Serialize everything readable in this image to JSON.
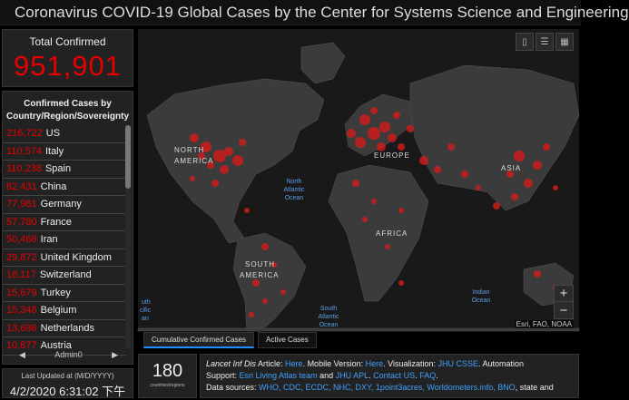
{
  "header": {
    "title": "Coronavirus COVID-19 Global Cases by the Center for Systems Science and Engineering"
  },
  "total": {
    "label": "Total Confirmed",
    "value": "951,901"
  },
  "list": {
    "heading_line1": "Confirmed Cases by",
    "heading_line2": "Country/Region/Sovereignty",
    "rows": [
      {
        "value": "216,722",
        "name": "US"
      },
      {
        "value": "110,574",
        "name": "Italy"
      },
      {
        "value": "110,238",
        "name": "Spain"
      },
      {
        "value": "82,431",
        "name": "China"
      },
      {
        "value": "77,981",
        "name": "Germany"
      },
      {
        "value": "57,780",
        "name": "France"
      },
      {
        "value": "50,468",
        "name": "Iran"
      },
      {
        "value": "29,872",
        "name": "United Kingdom"
      },
      {
        "value": "18,117",
        "name": "Switzerland"
      },
      {
        "value": "15,679",
        "name": "Turkey"
      },
      {
        "value": "15,348",
        "name": "Belgium"
      },
      {
        "value": "13,696",
        "name": "Netherlands"
      },
      {
        "value": "10,877",
        "name": "Austria"
      }
    ],
    "pager_label": "Admin0"
  },
  "updated": {
    "label": "Last Updated at (M/D/YYYY)",
    "value": "4/2/2020 6:31:02 下午"
  },
  "map": {
    "labels": {
      "north_america": [
        "NORTH",
        "AMERICA"
      ],
      "south_america": [
        "SOUTH",
        "AMERICA"
      ],
      "europe": "EUROPE",
      "asia": "ASIA",
      "africa": "AFRICA",
      "north_atlantic": [
        "North",
        "Atlantic",
        "Ocean"
      ],
      "south_atlantic": [
        "South",
        "Atlantic",
        "Ocean"
      ],
      "indian": [
        "Indian",
        "Ocean"
      ],
      "pacific_partial": [
        "uth",
        "cific",
        "an"
      ]
    },
    "attribution": "Esri, FAO, NOAA",
    "zoom_in": "+",
    "zoom_out": "−",
    "tools": [
      "bookmark-icon",
      "list-icon",
      "grid-icon"
    ]
  },
  "tabs": [
    {
      "label": "Cumulative Confirmed Cases",
      "active": true
    },
    {
      "label": "Active Cases",
      "active": false
    }
  ],
  "count": {
    "value": "180",
    "label": "countries/regions"
  },
  "info": {
    "line1_pre": "Lancet Inf Dis",
    "line1_article": " Article: ",
    "line1_here1": "Here",
    "line1_mobile": ". Mobile Version: ",
    "line1_here2": "Here",
    "line1_viz": ". Visualization: ",
    "line1_jhu": "JHU CSSE",
    "line1_auto": ". Automation",
    "line2_support": "Support: ",
    "line2_esri": "Esri Living Atlas team",
    "line2_and": " and ",
    "line2_apl": "JHU APL",
    "line2_dot": ". ",
    "line2_contact": "Contact US",
    "line2_dot2": ". ",
    "line2_faq": "FAQ",
    "line2_end": ".",
    "line3_ds": "Data sources: ",
    "line3_sources": "WHO, CDC, ECDC, NHC, DXY, 1point3acres, Worldometers.info, BNO",
    "line3_end": ", state and"
  }
}
